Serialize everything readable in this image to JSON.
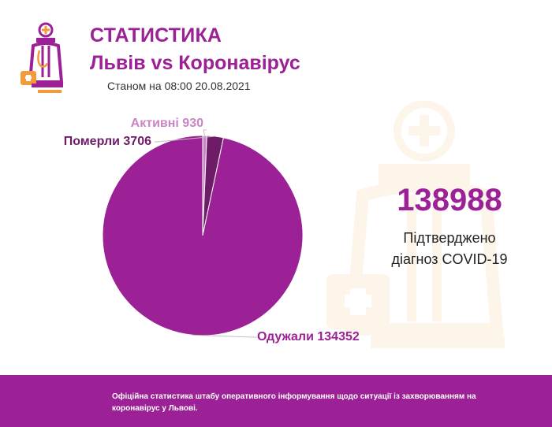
{
  "header": {
    "title": "СТАТИСТИКА",
    "subtitle": "Львів vs Коронавірус",
    "date_line": "Станом на 08:00 20.08.2021"
  },
  "summary": {
    "confirmed_value": "138988",
    "confirmed_line1": "Підтверджено",
    "confirmed_line2": "діагноз COVID-19"
  },
  "footer": {
    "text": "Офіційна статистика штабу оперативного інформування щодо ситуації із захворюванням на коронавірус у Львові."
  },
  "colors": {
    "brand": "#9c2096",
    "recovered": "#9c2096",
    "died": "#6e1b68",
    "active": "#c985c4",
    "logo_orange": "#f39a3a"
  },
  "icons": {
    "logo": "doctor-icon",
    "watermark": "doctor-icon"
  },
  "chart_data": {
    "type": "pie",
    "title": "",
    "slices": [
      {
        "label": "Одужали",
        "value": 134352,
        "text": "Одужали 134352"
      },
      {
        "label": "Померли",
        "value": 3706,
        "text": "Померли 3706"
      },
      {
        "label": "Активні",
        "value": 930,
        "text": "Активні 930"
      }
    ]
  }
}
